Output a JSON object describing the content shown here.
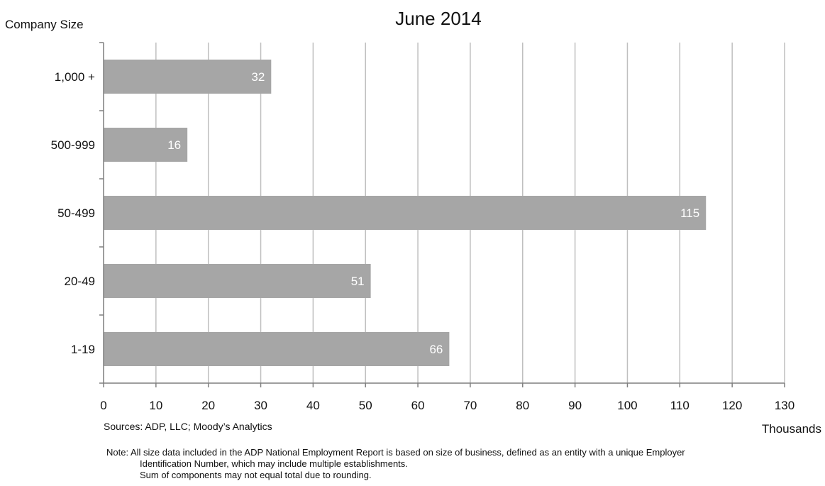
{
  "chart_data": {
    "type": "bar",
    "orientation": "horizontal",
    "title": "June 2014",
    "ylabel": "Company Size",
    "xlabel": "Thousands",
    "categories": [
      "1,000 +",
      "500-999",
      "50-499",
      "20-49",
      "1-19"
    ],
    "values": [
      32,
      16,
      115,
      51,
      66
    ],
    "data_labels": [
      "32",
      "16",
      "115",
      "51",
      "66"
    ],
    "xlim": [
      0,
      130
    ],
    "xticks": [
      0,
      10,
      20,
      30,
      40,
      50,
      60,
      70,
      80,
      90,
      100,
      110,
      120,
      130
    ],
    "grid": "vertical",
    "bar_color": "#a6a6a6",
    "grid_color": "#bfbfbf",
    "label_color": "#ffffff"
  },
  "sources": "Sources: ADP, LLC; Moody’s Analytics",
  "note": {
    "prefix": "Note:",
    "line1": "All size data included in the ADP National Employment Report is based on size of business, defined as an entity with a unique Employer",
    "line2": "Identification Number, which may include multiple establishments.",
    "line3": "Sum of components may not equal total due to rounding."
  }
}
